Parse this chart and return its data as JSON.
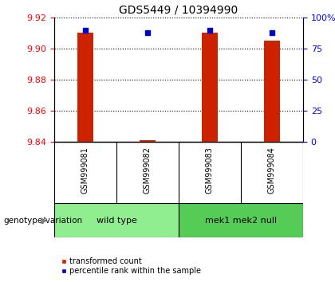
{
  "title": "GDS5449 / 10394990",
  "samples": [
    "GSM999081",
    "GSM999082",
    "GSM999083",
    "GSM999084"
  ],
  "red_values": [
    9.91,
    9.841,
    9.91,
    9.905
  ],
  "blue_values": [
    90,
    88,
    90,
    88
  ],
  "ylim_left": [
    9.84,
    9.92
  ],
  "ylim_right": [
    0,
    100
  ],
  "yticks_left": [
    9.84,
    9.86,
    9.88,
    9.9,
    9.92
  ],
  "yticks_right": [
    0,
    25,
    50,
    75,
    100
  ],
  "ytick_labels_right": [
    "0",
    "25",
    "50",
    "75",
    "100%"
  ],
  "groups": [
    {
      "label": "wild type",
      "samples": [
        0,
        1
      ],
      "color": "#90EE90"
    },
    {
      "label": "mek1 mek2 null",
      "samples": [
        2,
        3
      ],
      "color": "#55CC55"
    }
  ],
  "bar_width": 0.25,
  "bar_color": "#CC2200",
  "marker_color": "#0000CC",
  "sample_bg_color": "#D0D0D0",
  "plot_bg": "#FFFFFF",
  "genotype_label": "genotype/variation",
  "legend_red": "transformed count",
  "legend_blue": "percentile rank within the sample",
  "title_fontsize": 10,
  "axis_fontsize": 8,
  "label_fontsize": 8
}
